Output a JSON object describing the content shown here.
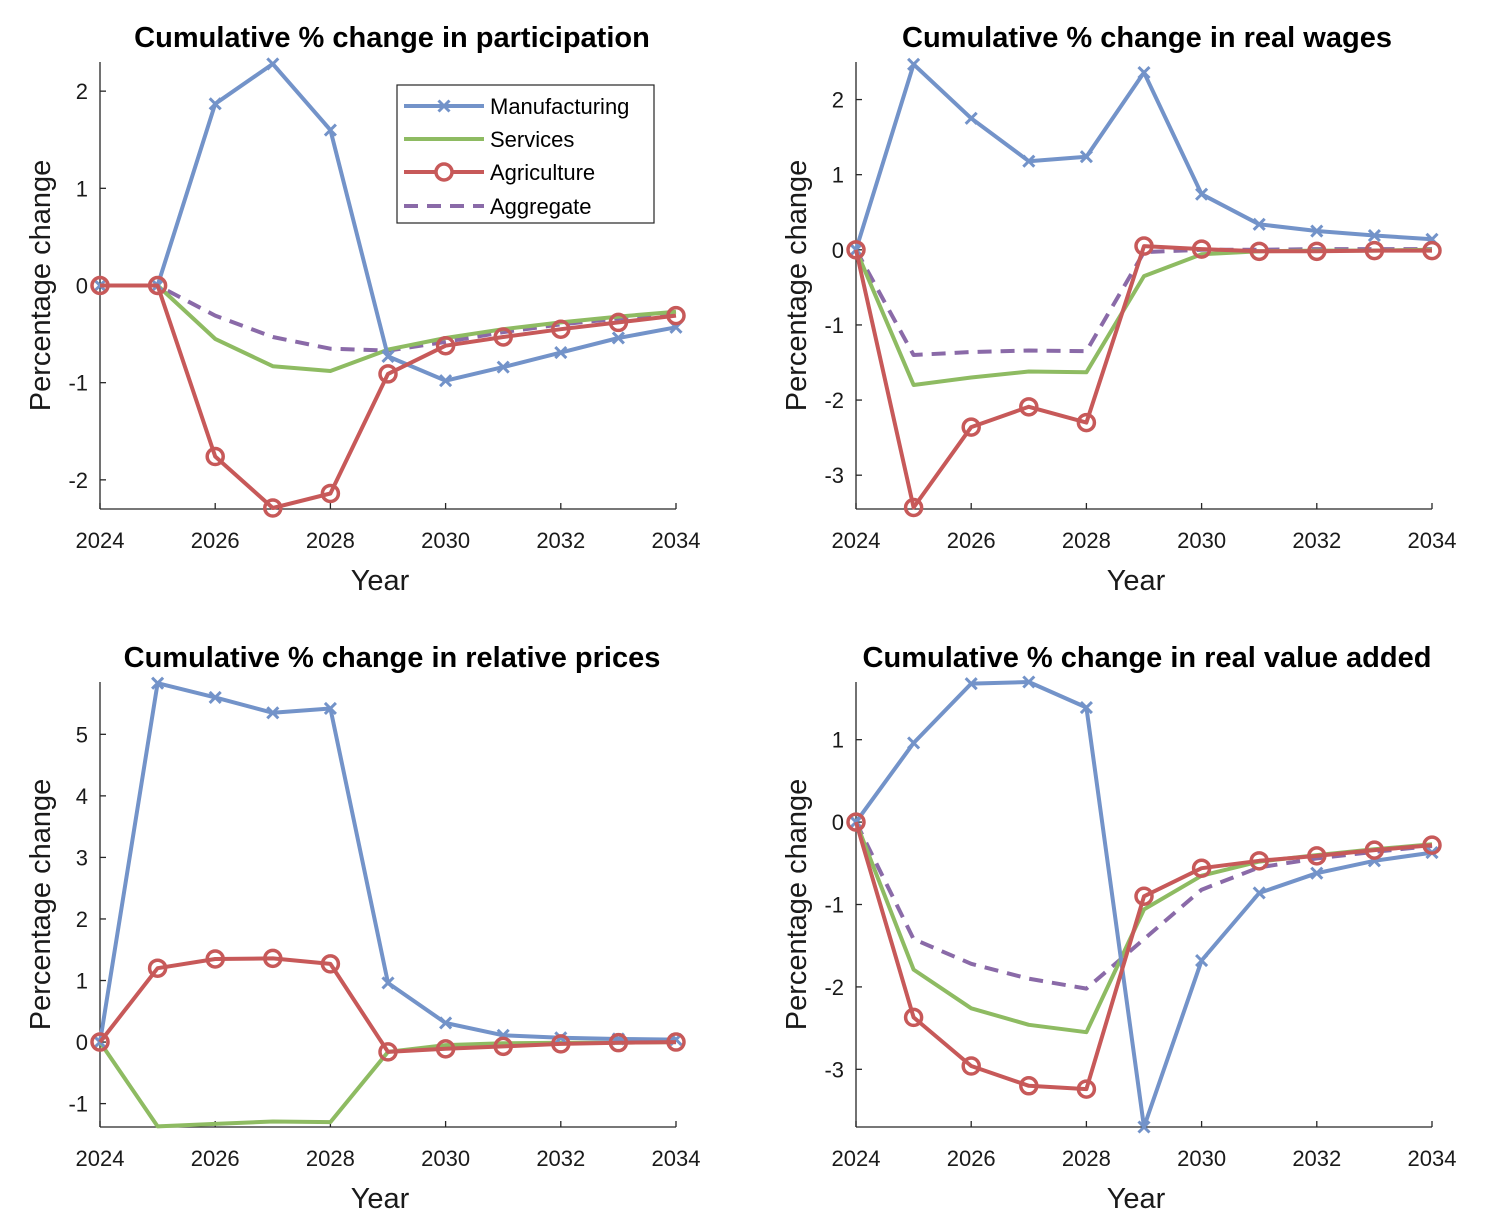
{
  "colors": {
    "manufacturing": "#7393c9",
    "services": "#8ebb62",
    "agriculture": "#c75959",
    "aggregate": "#8a6aa8"
  },
  "legend": {
    "placement": "top-right of first panel",
    "entries": [
      "Manufacturing",
      "Services",
      "Agriculture",
      "Aggregate"
    ]
  },
  "chart_data": [
    {
      "type": "line",
      "title": "Cumulative % change in participation",
      "xlabel": "Year",
      "ylabel": "Percentage change",
      "x": [
        2024,
        2025,
        2026,
        2027,
        2028,
        2029,
        2030,
        2031,
        2032,
        2033,
        2034
      ],
      "xlim": [
        2024,
        2034
      ],
      "ylim": [
        -2.3,
        2.3
      ],
      "xticks": [
        2024,
        2026,
        2028,
        2030,
        2032,
        2034
      ],
      "yticks": [
        -2,
        -1,
        0,
        1,
        2
      ],
      "series": [
        {
          "name": "Manufacturing",
          "values": [
            0,
            0,
            1.87,
            2.28,
            1.6,
            -0.73,
            -0.98,
            -0.84,
            -0.69,
            -0.54,
            -0.43
          ]
        },
        {
          "name": "Services",
          "values": [
            0,
            0,
            -0.55,
            -0.83,
            -0.88,
            -0.66,
            -0.54,
            -0.45,
            -0.38,
            -0.32,
            -0.27
          ]
        },
        {
          "name": "Agriculture",
          "values": [
            0,
            0,
            -1.76,
            -2.29,
            -2.14,
            -0.91,
            -0.62,
            -0.53,
            -0.45,
            -0.38,
            -0.31
          ]
        },
        {
          "name": "Aggregate",
          "values": [
            0,
            0,
            -0.31,
            -0.53,
            -0.65,
            -0.67,
            -0.58,
            -0.48,
            -0.4,
            -0.34,
            -0.28
          ]
        }
      ]
    },
    {
      "type": "line",
      "title": "Cumulative % change in real wages",
      "xlabel": "Year",
      "ylabel": "Percentage change",
      "x": [
        2024,
        2025,
        2026,
        2027,
        2028,
        2029,
        2030,
        2031,
        2032,
        2033,
        2034
      ],
      "xlim": [
        2024,
        2034
      ],
      "ylim": [
        -3.45,
        2.5
      ],
      "xticks": [
        2024,
        2026,
        2028,
        2030,
        2032,
        2034
      ],
      "yticks": [
        -3,
        -2,
        -1,
        0,
        1,
        2
      ],
      "series": [
        {
          "name": "Manufacturing",
          "values": [
            0,
            2.47,
            1.75,
            1.18,
            1.24,
            2.36,
            0.74,
            0.34,
            0.25,
            0.19,
            0.14
          ]
        },
        {
          "name": "Services",
          "values": [
            0,
            -1.8,
            -1.7,
            -1.62,
            -1.63,
            -0.35,
            -0.06,
            -0.02,
            -0.01,
            -0.01,
            0
          ]
        },
        {
          "name": "Agriculture",
          "values": [
            0,
            -3.43,
            -2.36,
            -2.09,
            -2.3,
            0.05,
            0.01,
            -0.02,
            -0.02,
            -0.01,
            -0.01
          ]
        },
        {
          "name": "Aggregate",
          "values": [
            0,
            -1.4,
            -1.36,
            -1.34,
            -1.35,
            -0.03,
            0,
            0,
            0.01,
            0.01,
            0.01
          ]
        }
      ]
    },
    {
      "type": "line",
      "title": "Cumulative % change in relative prices",
      "xlabel": "Year",
      "ylabel": "Percentage change",
      "x": [
        2024,
        2025,
        2026,
        2027,
        2028,
        2029,
        2030,
        2031,
        2032,
        2033,
        2034
      ],
      "xlim": [
        2024,
        2034
      ],
      "ylim": [
        -1.38,
        5.85
      ],
      "xticks": [
        2024,
        2026,
        2028,
        2030,
        2032,
        2034
      ],
      "yticks": [
        -1,
        0,
        1,
        2,
        3,
        4,
        5
      ],
      "series": [
        {
          "name": "Manufacturing",
          "values": [
            0,
            5.83,
            5.6,
            5.35,
            5.42,
            0.96,
            0.31,
            0.11,
            0.07,
            0.05,
            0.04
          ]
        },
        {
          "name": "Services",
          "values": [
            0,
            -1.37,
            -1.33,
            -1.29,
            -1.3,
            -0.16,
            -0.05,
            -0.02,
            -0.01,
            -0.01,
            0
          ]
        },
        {
          "name": "Agriculture",
          "values": [
            0,
            1.2,
            1.35,
            1.36,
            1.27,
            -0.16,
            -0.11,
            -0.07,
            -0.03,
            -0.01,
            0
          ]
        }
      ]
    },
    {
      "type": "line",
      "title": "Cumulative % change in real value added",
      "xlabel": "Year",
      "ylabel": "Percentage change",
      "x": [
        2024,
        2025,
        2026,
        2027,
        2028,
        2029,
        2030,
        2031,
        2032,
        2033,
        2034
      ],
      "xlim": [
        2024,
        2034
      ],
      "ylim": [
        -3.7,
        1.7
      ],
      "xticks": [
        2024,
        2026,
        2028,
        2030,
        2032,
        2034
      ],
      "yticks": [
        -3,
        -2,
        -1,
        0,
        1
      ],
      "series": [
        {
          "name": "Manufacturing",
          "values": [
            0,
            0.96,
            1.68,
            1.7,
            1.39,
            -3.7,
            -1.68,
            -0.86,
            -0.62,
            -0.47,
            -0.37
          ]
        },
        {
          "name": "Services",
          "values": [
            0,
            -1.79,
            -2.26,
            -2.46,
            -2.55,
            -1.06,
            -0.65,
            -0.48,
            -0.4,
            -0.33,
            -0.27
          ]
        },
        {
          "name": "Agriculture",
          "values": [
            0,
            -2.37,
            -2.96,
            -3.2,
            -3.24,
            -0.9,
            -0.56,
            -0.47,
            -0.41,
            -0.34,
            -0.28
          ]
        },
        {
          "name": "Aggregate",
          "values": [
            0,
            -1.42,
            -1.72,
            -1.9,
            -2.02,
            -1.42,
            -0.82,
            -0.55,
            -0.44,
            -0.36,
            -0.29
          ]
        }
      ]
    }
  ]
}
